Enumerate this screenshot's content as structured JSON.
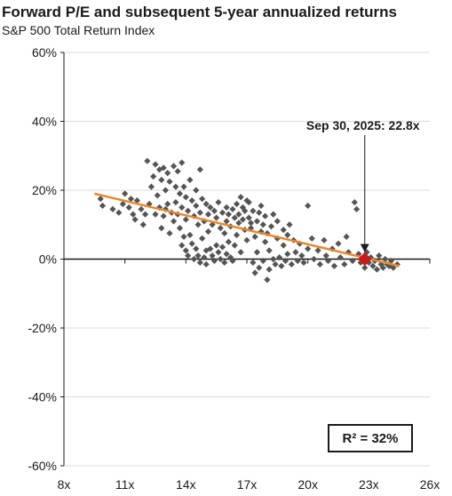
{
  "chart_data": {
    "type": "scatter",
    "title": "Forward P/E and subsequent 5-year annualized returns",
    "subtitle": "S&P 500 Total Return Index",
    "xlabel": "",
    "ylabel": "",
    "xlim": [
      8,
      26
    ],
    "ylim": [
      -60,
      60
    ],
    "x_ticks": [
      "8x",
      "11x",
      "14x",
      "17x",
      "20x",
      "23x",
      "26x"
    ],
    "y_ticks": [
      "60%",
      "40%",
      "20%",
      "0%",
      "-20%",
      "-40%",
      "-60%"
    ],
    "grid": "horizontal",
    "colors": {
      "points": "#555555",
      "trend": "#e8892b",
      "highlight": "#cc1a1a",
      "grid": "#d9d9d9"
    },
    "trendline": {
      "x": [
        9.5,
        24.5
      ],
      "y": [
        19,
        -2
      ]
    },
    "highlight": {
      "x": 22.8,
      "y": 0
    },
    "annotation": "Sep 30, 2025: 22.8x",
    "r_squared_label": "R² = 32%",
    "points": [
      [
        9.8,
        17.5
      ],
      [
        9.9,
        15.5
      ],
      [
        10.4,
        14.5
      ],
      [
        10.7,
        13.5
      ],
      [
        10.9,
        16
      ],
      [
        11.0,
        19
      ],
      [
        11.2,
        15
      ],
      [
        11.3,
        17.5
      ],
      [
        11.4,
        13
      ],
      [
        11.5,
        11.5
      ],
      [
        11.6,
        17
      ],
      [
        11.8,
        14.5
      ],
      [
        11.9,
        10
      ],
      [
        12.0,
        13
      ],
      [
        12.1,
        28.5
      ],
      [
        12.2,
        16
      ],
      [
        12.3,
        21
      ],
      [
        12.4,
        24
      ],
      [
        12.5,
        27.5
      ],
      [
        12.5,
        13
      ],
      [
        12.6,
        18.5
      ],
      [
        12.7,
        26
      ],
      [
        12.7,
        15
      ],
      [
        12.8,
        23
      ],
      [
        12.8,
        9
      ],
      [
        12.9,
        26.5
      ],
      [
        12.9,
        12.5
      ],
      [
        13.0,
        20
      ],
      [
        13.0,
        14.5
      ],
      [
        13.1,
        25
      ],
      [
        13.1,
        16
      ],
      [
        13.2,
        22.5
      ],
      [
        13.2,
        7.5
      ],
      [
        13.3,
        13.5
      ],
      [
        13.4,
        11
      ],
      [
        13.4,
        27
      ],
      [
        13.5,
        21
      ],
      [
        13.5,
        16.5
      ],
      [
        13.6,
        25.5
      ],
      [
        13.6,
        13
      ],
      [
        13.7,
        19
      ],
      [
        13.7,
        9
      ],
      [
        13.8,
        4
      ],
      [
        13.8,
        28
      ],
      [
        13.8,
        15
      ],
      [
        13.9,
        6.5
      ],
      [
        13.9,
        21
      ],
      [
        14.0,
        2.5
      ],
      [
        14.0,
        18
      ],
      [
        14.0,
        11.5
      ],
      [
        14.1,
        1
      ],
      [
        14.1,
        14
      ],
      [
        14.2,
        23
      ],
      [
        14.2,
        7
      ],
      [
        14.3,
        17
      ],
      [
        14.3,
        4.5
      ],
      [
        14.4,
        0
      ],
      [
        14.4,
        12.5
      ],
      [
        14.5,
        20
      ],
      [
        14.5,
        15.5
      ],
      [
        14.5,
        3
      ],
      [
        14.6,
        10
      ],
      [
        14.6,
        1
      ],
      [
        14.7,
        26
      ],
      [
        14.7,
        13.5
      ],
      [
        14.7,
        -1
      ],
      [
        14.8,
        17.5
      ],
      [
        14.8,
        6
      ],
      [
        14.9,
        0.5
      ],
      [
        14.9,
        11
      ],
      [
        15.0,
        16
      ],
      [
        15.0,
        2.5
      ],
      [
        15.0,
        -1.5
      ],
      [
        15.1,
        13
      ],
      [
        15.1,
        8
      ],
      [
        15.2,
        3
      ],
      [
        15.2,
        15
      ],
      [
        15.3,
        1
      ],
      [
        15.3,
        10
      ],
      [
        15.4,
        -0.5
      ],
      [
        15.4,
        14
      ],
      [
        15.5,
        4
      ],
      [
        15.5,
        12
      ],
      [
        15.6,
        2
      ],
      [
        15.6,
        16.5
      ],
      [
        15.7,
        9
      ],
      [
        15.7,
        0
      ],
      [
        15.8,
        13.5
      ],
      [
        15.8,
        3.5
      ],
      [
        15.9,
        7.5
      ],
      [
        15.9,
        -1
      ],
      [
        16.0,
        15
      ],
      [
        16.0,
        11
      ],
      [
        16.0,
        1.5
      ],
      [
        16.1,
        5
      ],
      [
        16.1,
        13
      ],
      [
        16.2,
        0.5
      ],
      [
        16.2,
        9.5
      ],
      [
        16.3,
        14.5
      ],
      [
        16.3,
        -0.5
      ],
      [
        16.4,
        12
      ],
      [
        16.4,
        4
      ],
      [
        16.5,
        16
      ],
      [
        16.5,
        7
      ],
      [
        16.6,
        10.5
      ],
      [
        16.6,
        13
      ],
      [
        16.7,
        18
      ],
      [
        16.7,
        2
      ],
      [
        16.8,
        11.5
      ],
      [
        16.8,
        15
      ],
      [
        16.9,
        8.5
      ],
      [
        16.9,
        14
      ],
      [
        17.0,
        17
      ],
      [
        17.0,
        5.5
      ],
      [
        17.1,
        12
      ],
      [
        17.1,
        16.5
      ],
      [
        17.2,
        9
      ],
      [
        17.2,
        10.5
      ],
      [
        17.3,
        -1
      ],
      [
        17.3,
        14
      ],
      [
        17.4,
        -4
      ],
      [
        17.4,
        6.5
      ],
      [
        17.5,
        11
      ],
      [
        17.5,
        2
      ],
      [
        17.6,
        13.5
      ],
      [
        17.6,
        -2.5
      ],
      [
        17.7,
        8
      ],
      [
        17.7,
        15.5
      ],
      [
        17.8,
        -0.5
      ],
      [
        17.8,
        10
      ],
      [
        17.9,
        5
      ],
      [
        17.9,
        12.5
      ],
      [
        18.0,
        -6
      ],
      [
        18.0,
        7.5
      ],
      [
        18.1,
        2.5
      ],
      [
        18.1,
        -3
      ],
      [
        18.2,
        9.5
      ],
      [
        18.3,
        0
      ],
      [
        18.3,
        13
      ],
      [
        18.4,
        -1.5
      ],
      [
        18.5,
        6
      ],
      [
        18.5,
        11
      ],
      [
        18.6,
        0.5
      ],
      [
        18.7,
        -2
      ],
      [
        18.8,
        4
      ],
      [
        18.8,
        8.5
      ],
      [
        18.9,
        -0.5
      ],
      [
        19.0,
        7
      ],
      [
        19.0,
        1.5
      ],
      [
        19.1,
        10
      ],
      [
        19.2,
        -1.5
      ],
      [
        19.3,
        5.5
      ],
      [
        19.4,
        2
      ],
      [
        19.5,
        -0.5
      ],
      [
        19.6,
        4.5
      ],
      [
        19.7,
        1
      ],
      [
        19.8,
        -1
      ],
      [
        20.0,
        15.5
      ],
      [
        20.0,
        3
      ],
      [
        20.2,
        6
      ],
      [
        20.3,
        0
      ],
      [
        20.5,
        2.5
      ],
      [
        20.6,
        -1.5
      ],
      [
        20.8,
        5.5
      ],
      [
        20.9,
        1
      ],
      [
        21.0,
        -0.5
      ],
      [
        21.2,
        3
      ],
      [
        21.3,
        -2
      ],
      [
        21.5,
        4.5
      ],
      [
        21.6,
        0.5
      ],
      [
        21.8,
        -1.5
      ],
      [
        21.9,
        6.5
      ],
      [
        22.0,
        2
      ],
      [
        22.2,
        -0.5
      ],
      [
        22.3,
        16.5
      ],
      [
        22.4,
        14.5
      ],
      [
        22.5,
        1.5
      ],
      [
        22.6,
        -1
      ],
      [
        22.8,
        -2.5
      ],
      [
        22.9,
        2
      ],
      [
        23.0,
        -1
      ],
      [
        23.1,
        0.5
      ],
      [
        23.2,
        -2
      ],
      [
        23.3,
        -0.5
      ],
      [
        23.4,
        -3
      ],
      [
        23.5,
        1
      ],
      [
        23.6,
        -1.5
      ],
      [
        23.7,
        -2.5
      ],
      [
        23.8,
        0
      ],
      [
        23.9,
        -1.5
      ],
      [
        24.0,
        -2
      ],
      [
        24.1,
        -0.5
      ],
      [
        24.2,
        -2.5
      ],
      [
        24.4,
        -1.5
      ]
    ]
  }
}
